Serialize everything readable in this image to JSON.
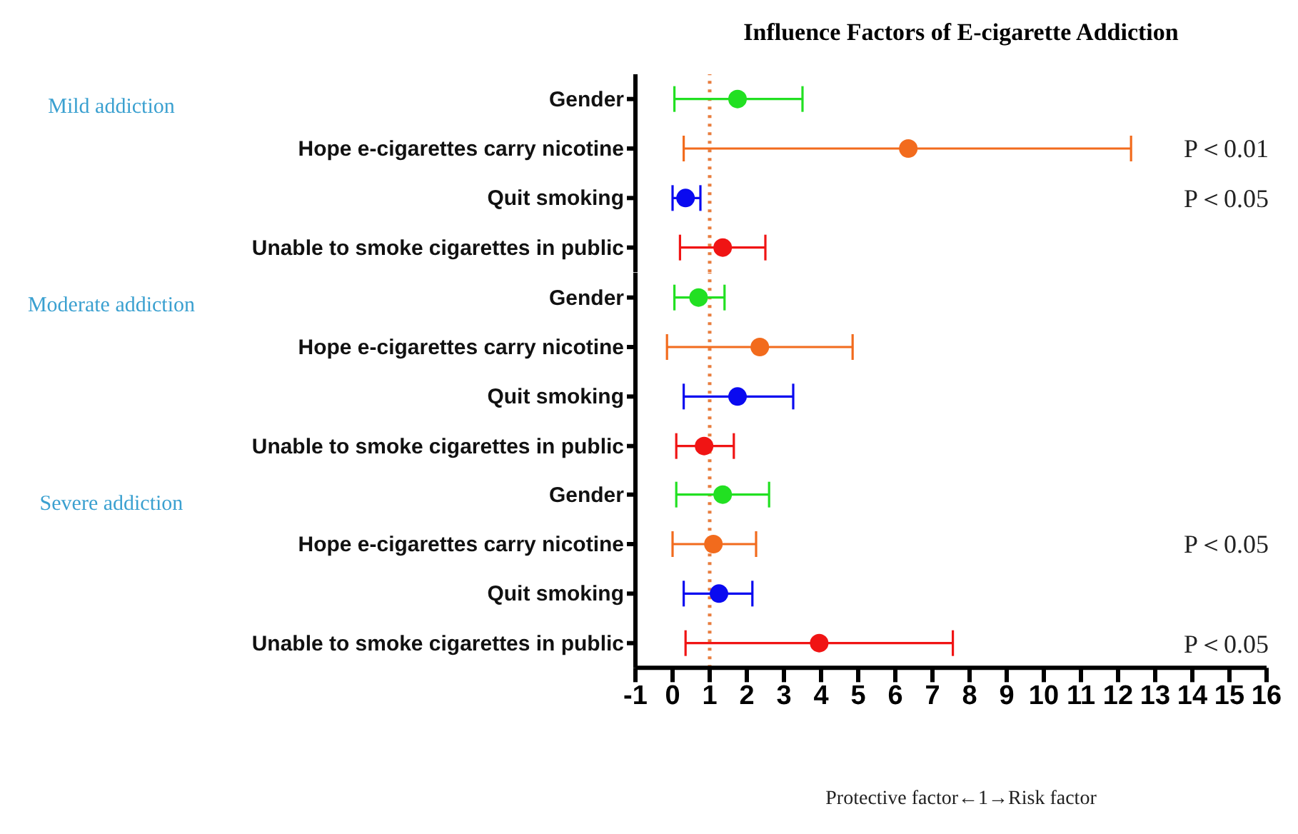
{
  "chart_data": [
    {
      "type": "scatter",
      "orientation": "horizontal",
      "title": "Influence Factors of E-cigarette Addiction",
      "ylabel": "Mild addiction",
      "categories": [
        "Gender",
        "Hope e-cigarettes carry nicotine",
        "Quit smoking",
        "Unable to smoke cigarettes in public"
      ],
      "values": [
        1.75,
        6.35,
        0.35,
        1.35
      ],
      "errors": [
        [
          0.05,
          3.5
        ],
        [
          0.3,
          12.35
        ],
        [
          0.0,
          0.75
        ],
        [
          0.2,
          2.5
        ]
      ],
      "colors": [
        "#22e022",
        "#f26b1d",
        "#0a0af0",
        "#f01414"
      ],
      "annotations": [
        "P＜0.01",
        "P＜0.05"
      ],
      "xlim": [
        -1,
        16
      ],
      "tick_labels": "y",
      "grid": false,
      "ref_lines": [
        {
          "axis": "x",
          "value": 1,
          "color": "#e87d3e",
          "line_style": "dotted"
        }
      ],
      "marker": "circle"
    },
    {
      "type": "scatter",
      "orientation": "horizontal",
      "ylabel": "Moderate addiction",
      "categories": [
        "Gender",
        "Hope e-cigarettes carry nicotine",
        "Quit smoking",
        "Unable to smoke cigarettes in public"
      ],
      "values": [
        0.7,
        2.35,
        1.75,
        0.85
      ],
      "errors": [
        [
          0.05,
          1.4
        ],
        [
          -0.15,
          4.85
        ],
        [
          0.3,
          3.25
        ],
        [
          0.1,
          1.65
        ]
      ],
      "colors": [
        "#22e022",
        "#f26b1d",
        "#0a0af0",
        "#f01414"
      ],
      "xlim": [
        -1,
        16
      ],
      "tick_labels": "y",
      "grid": false,
      "ref_lines": [
        {
          "axis": "x",
          "value": 1,
          "color": "#e87d3e",
          "line_style": "dotted"
        }
      ],
      "marker": "circle"
    },
    {
      "type": "scatter",
      "orientation": "horizontal",
      "ylabel": "Severe addiction",
      "xlabel": "Protective factor←1→Risk factor",
      "categories": [
        "Gender",
        "Hope e-cigarettes carry nicotine",
        "Quit smoking",
        "Unable to smoke cigarettes in public"
      ],
      "values": [
        1.35,
        1.1,
        1.25,
        3.95
      ],
      "errors": [
        [
          0.1,
          2.6
        ],
        [
          0.0,
          2.25
        ],
        [
          0.3,
          2.15
        ],
        [
          0.35,
          7.55
        ]
      ],
      "colors": [
        "#22e022",
        "#f26b1d",
        "#0a0af0",
        "#f01414"
      ],
      "annotations": [
        "P＜0.05",
        "P＜0.05"
      ],
      "grid": false,
      "xlim": [
        -1,
        16
      ],
      "xticks": [
        -1,
        0,
        1,
        2,
        3,
        4,
        5,
        6,
        7,
        8,
        9,
        10,
        11,
        12,
        13,
        14,
        15,
        16
      ],
      "ref_lines": [
        {
          "axis": "x",
          "value": 1,
          "color": "#e87d3e",
          "line_style": "dotted"
        }
      ],
      "marker": "circle"
    }
  ]
}
